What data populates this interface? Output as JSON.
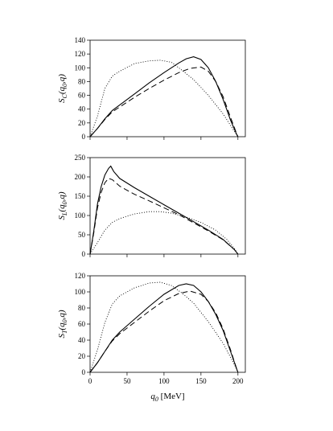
{
  "chart_data": [
    {
      "type": "line",
      "ylabel": "S_C(q_0,q)",
      "ylabel_parts": {
        "main": "S",
        "sub": "C",
        "args": "(q",
        "args_sub": "0",
        "args_end": ",q)"
      },
      "xlim": [
        0,
        210
      ],
      "ylim": [
        0,
        140
      ],
      "yticks": [
        0,
        20,
        40,
        60,
        80,
        100,
        120,
        140
      ],
      "xticks": [
        0,
        50,
        100,
        150,
        200
      ],
      "show_xtick_labels": false,
      "series": [
        {
          "style": "solid",
          "points": [
            [
              0,
              0
            ],
            [
              10,
              12
            ],
            [
              20,
              26
            ],
            [
              30,
              38
            ],
            [
              40,
              46
            ],
            [
              60,
              62
            ],
            [
              80,
              78
            ],
            [
              100,
              93
            ],
            [
              120,
              107
            ],
            [
              130,
              113
            ],
            [
              140,
              116
            ],
            [
              150,
              112
            ],
            [
              160,
              100
            ],
            [
              170,
              80
            ],
            [
              180,
              54
            ],
            [
              190,
              24
            ],
            [
              198,
              4
            ],
            [
              200,
              0
            ]
          ]
        },
        {
          "style": "dashed",
          "points": [
            [
              0,
              0
            ],
            [
              10,
              12
            ],
            [
              20,
              25
            ],
            [
              30,
              36
            ],
            [
              40,
              43
            ],
            [
              60,
              57
            ],
            [
              80,
              70
            ],
            [
              100,
              82
            ],
            [
              120,
              93
            ],
            [
              135,
              99
            ],
            [
              150,
              101
            ],
            [
              160,
              95
            ],
            [
              170,
              80
            ],
            [
              180,
              58
            ],
            [
              190,
              28
            ],
            [
              198,
              5
            ],
            [
              200,
              0
            ]
          ]
        },
        {
          "style": "dotted",
          "points": [
            [
              0,
              0
            ],
            [
              10,
              30
            ],
            [
              20,
              70
            ],
            [
              30,
              88
            ],
            [
              40,
              95
            ],
            [
              60,
              106
            ],
            [
              80,
              110
            ],
            [
              95,
              111
            ],
            [
              110,
              108
            ],
            [
              120,
              100
            ],
            [
              140,
              83
            ],
            [
              160,
              60
            ],
            [
              180,
              33
            ],
            [
              195,
              8
            ],
            [
              200,
              0
            ]
          ]
        }
      ]
    },
    {
      "type": "line",
      "ylabel": "S_L(q_0,q)",
      "ylabel_parts": {
        "main": "S",
        "sub": "L",
        "args": "(q",
        "args_sub": "0",
        "args_end": ",q)"
      },
      "xlim": [
        0,
        210
      ],
      "ylim": [
        0,
        250
      ],
      "yticks": [
        0,
        50,
        100,
        150,
        200,
        250
      ],
      "xticks": [
        0,
        50,
        100,
        150,
        200
      ],
      "show_xtick_labels": false,
      "series": [
        {
          "style": "solid",
          "points": [
            [
              0,
              0
            ],
            [
              5,
              60
            ],
            [
              10,
              130
            ],
            [
              15,
              175
            ],
            [
              20,
              205
            ],
            [
              25,
              222
            ],
            [
              28,
              228
            ],
            [
              32,
              214
            ],
            [
              40,
              196
            ],
            [
              60,
              172
            ],
            [
              80,
              150
            ],
            [
              100,
              128
            ],
            [
              120,
              106
            ],
            [
              140,
              84
            ],
            [
              160,
              62
            ],
            [
              180,
              38
            ],
            [
              195,
              12
            ],
            [
              200,
              0
            ]
          ]
        },
        {
          "style": "dashed",
          "points": [
            [
              0,
              0
            ],
            [
              5,
              55
            ],
            [
              10,
              120
            ],
            [
              15,
              160
            ],
            [
              20,
              185
            ],
            [
              25,
              196
            ],
            [
              30,
              193
            ],
            [
              40,
              176
            ],
            [
              60,
              155
            ],
            [
              80,
              138
            ],
            [
              100,
              120
            ],
            [
              120,
              102
            ],
            [
              140,
              81
            ],
            [
              160,
              60
            ],
            [
              180,
              37
            ],
            [
              195,
              12
            ],
            [
              200,
              0
            ]
          ]
        },
        {
          "style": "dotted",
          "points": [
            [
              0,
              0
            ],
            [
              10,
              30
            ],
            [
              20,
              62
            ],
            [
              30,
              82
            ],
            [
              40,
              92
            ],
            [
              60,
              104
            ],
            [
              80,
              110
            ],
            [
              95,
              110
            ],
            [
              110,
              106
            ],
            [
              130,
              96
            ],
            [
              150,
              82
            ],
            [
              170,
              62
            ],
            [
              185,
              38
            ],
            [
              195,
              15
            ],
            [
              200,
              0
            ]
          ]
        }
      ]
    },
    {
      "type": "line",
      "ylabel": "S_T(q_0,q)",
      "ylabel_parts": {
        "main": "S",
        "sub": "T",
        "args": "(q",
        "args_sub": "0",
        "args_end": ",q)"
      },
      "xlabel": "q_0 [MeV]",
      "xlabel_parts": {
        "main": "q",
        "sub": "0",
        "rest": " [MeV]"
      },
      "xlim": [
        0,
        210
      ],
      "ylim": [
        0,
        120
      ],
      "yticks": [
        0,
        20,
        40,
        60,
        80,
        100,
        120
      ],
      "xticks": [
        0,
        50,
        100,
        150,
        200
      ],
      "show_xtick_labels": true,
      "series": [
        {
          "style": "solid",
          "points": [
            [
              0,
              0
            ],
            [
              10,
              12
            ],
            [
              20,
              26
            ],
            [
              30,
              40
            ],
            [
              40,
              50
            ],
            [
              60,
              66
            ],
            [
              80,
              82
            ],
            [
              100,
              97
            ],
            [
              120,
              108
            ],
            [
              130,
              110
            ],
            [
              140,
              108
            ],
            [
              150,
              100
            ],
            [
              160,
              88
            ],
            [
              170,
              72
            ],
            [
              180,
              52
            ],
            [
              190,
              26
            ],
            [
              198,
              5
            ],
            [
              200,
              0
            ]
          ]
        },
        {
          "style": "dashed",
          "points": [
            [
              0,
              0
            ],
            [
              10,
              12
            ],
            [
              20,
              26
            ],
            [
              30,
              39
            ],
            [
              40,
              48
            ],
            [
              60,
              62
            ],
            [
              80,
              76
            ],
            [
              100,
              89
            ],
            [
              120,
              98
            ],
            [
              135,
              101
            ],
            [
              150,
              97
            ],
            [
              160,
              88
            ],
            [
              170,
              74
            ],
            [
              180,
              54
            ],
            [
              190,
              28
            ],
            [
              198,
              5
            ],
            [
              200,
              0
            ]
          ]
        },
        {
          "style": "dotted",
          "points": [
            [
              0,
              0
            ],
            [
              10,
              28
            ],
            [
              20,
              62
            ],
            [
              30,
              85
            ],
            [
              40,
              95
            ],
            [
              60,
              105
            ],
            [
              80,
              111
            ],
            [
              95,
              112
            ],
            [
              110,
              108
            ],
            [
              125,
              98
            ],
            [
              140,
              86
            ],
            [
              160,
              63
            ],
            [
              180,
              36
            ],
            [
              195,
              10
            ],
            [
              200,
              0
            ]
          ]
        }
      ]
    }
  ]
}
